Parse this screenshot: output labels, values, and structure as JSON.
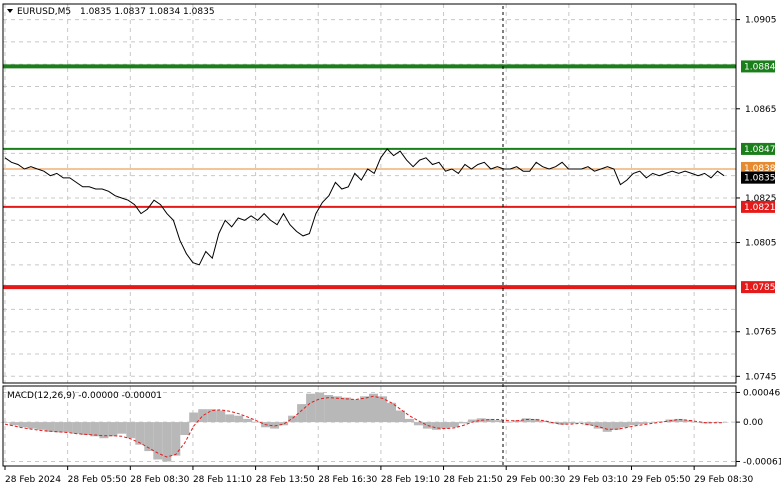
{
  "header": {
    "symbol_label": "EURUSD,M5",
    "ohlc": "1.0835 1.0837 1.0834 1.0835"
  },
  "macd": {
    "label": "MACD(12,26,9) -0.00000 -0.00001",
    "ticks": [
      "0.00046",
      "0.00",
      "-0.00061"
    ],
    "tick_values": [
      0.00046,
      0.0,
      -0.00061
    ],
    "range": [
      -0.00068,
      0.00056
    ]
  },
  "colors": {
    "resistance": "#1a7e1a",
    "support": "#e41a1a",
    "price_line": "#000000",
    "current_price_tag": "#000000",
    "bid_line": "#e58a2f",
    "macd_hist": "#b8b8b8",
    "macd_signal": "#e41a1a"
  },
  "chart_data": {
    "type": "line",
    "title": "EURUSD,M5",
    "symbol": "EURUSD",
    "timeframe": "M5",
    "ylim": [
      1.0742,
      1.0912
    ],
    "y_ticks": [
      "1.0905",
      "1.0865",
      "1.0825",
      "1.0805",
      "1.0765",
      "1.0745"
    ],
    "y_tick_values": [
      1.0905,
      1.0865,
      1.0825,
      1.0805,
      1.0765,
      1.0745
    ],
    "x_ticks": [
      "28 Feb 2024",
      "28 Feb 05:50",
      "28 Feb 08:30",
      "28 Feb 11:10",
      "28 Feb 13:50",
      "28 Feb 16:30",
      "28 Feb 19:10",
      "28 Feb 21:50",
      "29 Feb 00:30",
      "29 Feb 03:10",
      "29 Feb 05:50",
      "29 Feb 08:30"
    ],
    "grid": true,
    "levels": [
      {
        "label": "1.0884",
        "value": 1.0884,
        "kind": "resistance"
      },
      {
        "label": "1.0847",
        "value": 1.0847,
        "kind": "resistance"
      },
      {
        "label": "1.0821",
        "value": 1.0821,
        "kind": "support"
      },
      {
        "label": "1.0785",
        "value": 1.0785,
        "kind": "support"
      }
    ],
    "bid_line": {
      "label": "1.0838",
      "value": 1.0838
    },
    "current_price": {
      "label": "1.0835",
      "value": 1.0835
    },
    "series": [
      {
        "name": "EURUSD",
        "values": [
          1.0843,
          1.0841,
          1.084,
          1.0838,
          1.0839,
          1.0838,
          1.0837,
          1.0835,
          1.0836,
          1.0834,
          1.0834,
          1.0832,
          1.083,
          1.083,
          1.0829,
          1.0829,
          1.0828,
          1.0826,
          1.0825,
          1.0824,
          1.0822,
          1.0818,
          1.082,
          1.0824,
          1.0822,
          1.0818,
          1.0815,
          1.0806,
          1.08,
          1.0796,
          1.0795,
          1.0801,
          1.0798,
          1.0809,
          1.0815,
          1.0812,
          1.0816,
          1.0815,
          1.0817,
          1.0815,
          1.0818,
          1.0815,
          1.0813,
          1.0818,
          1.0813,
          1.081,
          1.0808,
          1.0809,
          1.0818,
          1.0823,
          1.0826,
          1.0832,
          1.0829,
          1.083,
          1.0836,
          1.0833,
          1.0838,
          1.0836,
          1.0843,
          1.0847,
          1.0844,
          1.0846,
          1.0842,
          1.0839,
          1.0842,
          1.0843,
          1.084,
          1.0841,
          1.0837,
          1.0838,
          1.0836,
          1.084,
          1.0838,
          1.084,
          1.0841,
          1.0838,
          1.0839,
          1.0838,
          1.0838,
          1.0839,
          1.0837,
          1.0837,
          1.0841,
          1.0839,
          1.0838,
          1.0839,
          1.0841,
          1.0838,
          1.0838,
          1.0838,
          1.0839,
          1.0837,
          1.0838,
          1.0839,
          1.0838,
          1.0831,
          1.0833,
          1.0836,
          1.0837,
          1.0834,
          1.0836,
          1.0835,
          1.0836,
          1.0837,
          1.0836,
          1.0837,
          1.0836,
          1.0835,
          1.0836,
          1.0834,
          1.0837,
          1.0835
        ]
      },
      {
        "name": "MACD histogram",
        "values": [
          0.0,
          -5e-05,
          -8e-05,
          -0.0001,
          -0.00012,
          -0.00015,
          -0.00016,
          -0.00016,
          -0.00018,
          -0.0002,
          -0.00022,
          -0.00025,
          -0.00022,
          -0.00018,
          -0.00025,
          -0.00035,
          -0.00045,
          -0.00058,
          -0.00061,
          -0.00052,
          -0.0002,
          0.00015,
          0.0002,
          0.0002,
          0.00018,
          0.00012,
          0.0001,
          5e-05,
          0.0,
          -8e-05,
          -0.0001,
          -5e-05,
          0.0001,
          0.00028,
          0.00044,
          0.00046,
          0.00042,
          0.0004,
          0.00038,
          0.00035,
          0.0004,
          0.00044,
          0.0004,
          0.0003,
          0.00018,
          5e-05,
          -5e-05,
          -0.0001,
          -0.00012,
          -0.0001,
          -8e-05,
          -2e-05,
          4e-05,
          6e-05,
          5e-05,
          3e-05,
          0.0,
          3e-05,
          6e-05,
          5e-05,
          2e-05,
          -2e-05,
          -4e-05,
          -2e-05,
          0.0,
          -5e-05,
          -0.0001,
          -0.00015,
          -0.00012,
          -8e-05,
          -5e-05,
          -3e-05,
          -1e-05,
          1e-05,
          4e-05,
          5e-05,
          3e-05,
          0.0,
          -2e-05,
          -1e-05,
          0.0
        ]
      },
      {
        "name": "MACD signal",
        "values": [
          -3e-05,
          -6e-05,
          -9e-05,
          -0.00011,
          -0.00013,
          -0.00014,
          -0.00015,
          -0.00016,
          -0.00018,
          -0.00019,
          -0.0002,
          -0.00021,
          -0.00021,
          -0.00022,
          -0.00026,
          -0.00032,
          -0.0004,
          -0.00048,
          -0.00054,
          -0.0005,
          -0.00032,
          -6e-05,
          0.0001,
          0.00018,
          0.00019,
          0.00017,
          0.00013,
          8e-05,
          2e-05,
          -4e-05,
          -6e-05,
          -3e-05,
          6e-05,
          0.00018,
          0.0003,
          0.00036,
          0.00038,
          0.00037,
          0.00036,
          0.00035,
          0.00037,
          0.0004,
          0.00037,
          0.0003,
          0.0002,
          0.0001,
          2e-05,
          -5e-05,
          -9e-05,
          -0.0001,
          -9e-05,
          -5e-05,
          0.0,
          3e-05,
          4e-05,
          4e-05,
          2e-05,
          2e-05,
          4e-05,
          4e-05,
          2e-05,
          -1e-05,
          -3e-05,
          -3e-05,
          -2e-05,
          -4e-05,
          -7e-05,
          -0.00011,
          -0.00011,
          -9e-05,
          -6e-05,
          -4e-05,
          -2e-05,
          0.0,
          2e-05,
          4e-05,
          3e-05,
          1e-05,
          -1e-05,
          -1e-05,
          -1e-05
        ]
      }
    ]
  }
}
